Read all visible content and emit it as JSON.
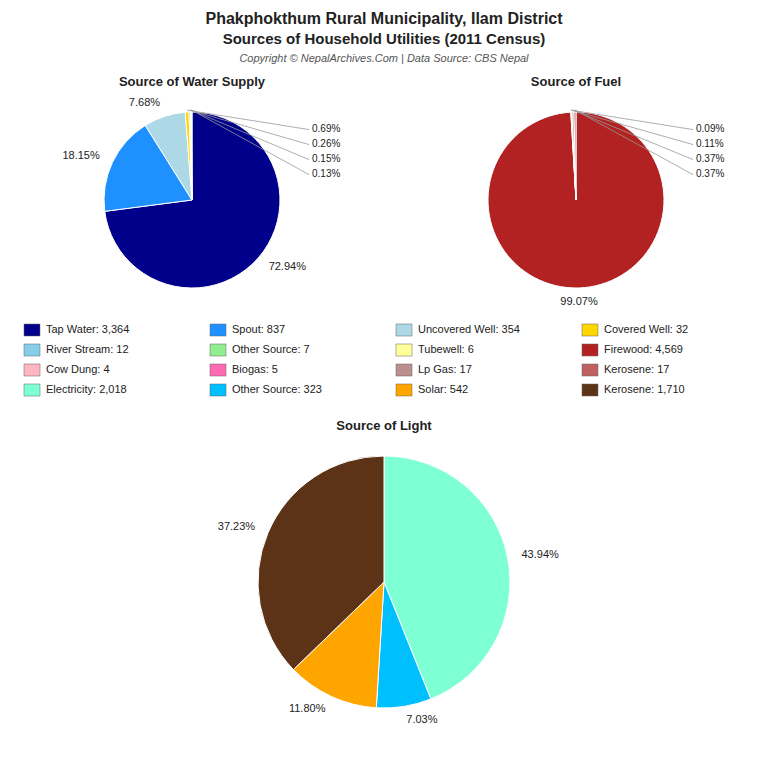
{
  "title": "Phakphokthum Rural Municipality, Ilam District",
  "subtitle": "Sources of Household Utilities (2011 Census)",
  "annotations": [
    "Copyright © NepalArchives.Com | Data Source: CBS Nepal"
  ],
  "chart_data": [
    {
      "type": "pie",
      "title": "Source of Water Supply",
      "categories": [
        "Tap Water: 3,364",
        "Spout: 837",
        "Uncovered Well: 354",
        "Covered Well: 32",
        "River Stream: 12",
        "Other Source: 7",
        "Tubewell: 6"
      ],
      "values": [
        72.94,
        18.15,
        7.68,
        0.69,
        0.26,
        0.15,
        0.13
      ],
      "value_labels": [
        "72.94%",
        "18.15%",
        "7.68%",
        "0.69%",
        "0.26%",
        "0.15%",
        "0.13%"
      ],
      "colors": [
        "#00008B",
        "#1E90FF",
        "#ADD8E6",
        "#FFD700",
        "#87CEEB",
        "#90EE90",
        "#FFFF99"
      ],
      "data_labels": true
    },
    {
      "type": "pie",
      "title": "Source of Fuel",
      "categories": [
        "Firewood: 4,569",
        "Cow Dung: 4",
        "Biogas: 5",
        "Lp Gas: 17",
        "Kerosene: 17"
      ],
      "values": [
        99.07,
        0.09,
        0.11,
        0.37,
        0.37
      ],
      "value_labels": [
        "99.07%",
        "0.09%",
        "0.11%",
        "0.37%",
        "0.37%"
      ],
      "colors": [
        "#B22222",
        "#FFB6C1",
        "#FF69B4",
        "#BC8F8F",
        "#C06060"
      ],
      "data_labels": true
    },
    {
      "type": "pie",
      "title": "Source of Light",
      "categories": [
        "Electricity: 2,018",
        "Other Source: 323",
        "Solar: 542",
        "Kerosene: 1,710"
      ],
      "values": [
        43.94,
        7.03,
        11.8,
        37.23
      ],
      "value_labels": [
        "43.94%",
        "7.03%",
        "11.80%",
        "37.23%"
      ],
      "colors": [
        "#7FFFD4",
        "#00BFFF",
        "#FFA500",
        "#5C3317"
      ],
      "data_labels": true
    }
  ]
}
